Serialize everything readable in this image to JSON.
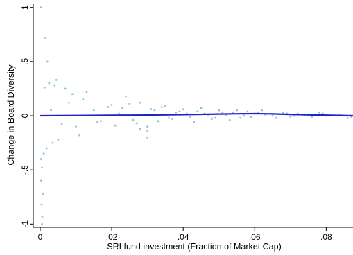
{
  "chart_data": {
    "type": "scatter",
    "title": "",
    "xlabel": "SRI fund investment (Fraction of Market Cap)",
    "ylabel": "Change in Board Diversity",
    "xlim": [
      0,
      0.0875
    ],
    "ylim": [
      -1.03,
      1.03
    ],
    "x_ticks": [
      0,
      0.02,
      0.04,
      0.06,
      0.08
    ],
    "x_tick_labels": [
      "0",
      ".02",
      ".04",
      ".06",
      ".08"
    ],
    "y_ticks": [
      -1,
      -0.5,
      0,
      0.5,
      1
    ],
    "y_tick_labels": [
      "-1",
      "-.5",
      "0",
      ".5",
      "1"
    ],
    "grid": false,
    "legend": "none",
    "colors": {
      "points": "#87c1e8",
      "fit_line": "#1f22c9"
    },
    "series": [
      {
        "kind": "scatter",
        "x": [
          0.0002,
          0.0015,
          0.002,
          0.0005,
          0.0006,
          0.0004,
          0.0008,
          0.0003,
          0.0005,
          0.0002,
          0.001,
          0.0045,
          0.003,
          0.006,
          0.008,
          0.01,
          0.012,
          0.015,
          0.017,
          0.02,
          0.022,
          0.024,
          0.026,
          0.028,
          0.03,
          0.032,
          0.034,
          0.036,
          0.038,
          0.04,
          0.042,
          0.044,
          0.046,
          0.048,
          0.05,
          0.052,
          0.054,
          0.056,
          0.058,
          0.06,
          0.062,
          0.065,
          0.068,
          0.07,
          0.072,
          0.075,
          0.078,
          0.08,
          0.082,
          0.085,
          0.087,
          0.028,
          0.03,
          0.03,
          0.009,
          0.007,
          0.011,
          0.013,
          0.004,
          0.005,
          0.0035,
          0.0025,
          0.0018,
          0.0012,
          0.016,
          0.019,
          0.021,
          0.023,
          0.025,
          0.027,
          0.031,
          0.033,
          0.035,
          0.037,
          0.039,
          0.041,
          0.043,
          0.045,
          0.047,
          0.049,
          0.051,
          0.053,
          0.055,
          0.057,
          0.059,
          0.061,
          0.063,
          0.066,
          0.069,
          0.071,
          0.074,
          0.076,
          0.079,
          0.081,
          0.084,
          0.086
        ],
        "y": [
          1.0,
          0.72,
          0.5,
          -1.0,
          -0.93,
          -0.82,
          -0.72,
          -0.6,
          -0.48,
          -0.4,
          -0.35,
          0.33,
          0.05,
          -0.08,
          0.12,
          -0.1,
          0.15,
          0.05,
          -0.05,
          0.1,
          0.02,
          0.18,
          -0.04,
          0.12,
          -0.1,
          0.05,
          0.08,
          -0.02,
          0.03,
          0.06,
          -0.01,
          0.04,
          0.02,
          -0.03,
          0.05,
          0.01,
          0.03,
          -0.02,
          0.04,
          0.02,
          0.05,
          0.0,
          0.03,
          -0.01,
          0.02,
          0.01,
          0.03,
          0.0,
          0.01,
          0.0,
          -0.01,
          -0.12,
          -0.14,
          -0.2,
          0.2,
          0.25,
          -0.18,
          0.22,
          0.28,
          -0.22,
          -0.25,
          0.3,
          -0.3,
          0.26,
          -0.06,
          0.08,
          -0.09,
          0.07,
          0.11,
          -0.07,
          0.06,
          -0.05,
          0.09,
          -0.03,
          0.04,
          0.02,
          -0.06,
          0.07,
          0.01,
          -0.02,
          0.03,
          -0.04,
          0.05,
          0.0,
          -0.01,
          0.03,
          0.01,
          -0.02,
          0.02,
          0.0,
          0.01,
          -0.01,
          0.02,
          0.0,
          0.01,
          -0.02
        ]
      },
      {
        "kind": "line",
        "x": [
          0,
          0.01,
          0.02,
          0.03,
          0.04,
          0.05,
          0.055,
          0.06,
          0.065,
          0.07,
          0.08,
          0.0875
        ],
        "y": [
          0.0,
          0.002,
          0.004,
          0.006,
          0.01,
          0.015,
          0.018,
          0.019,
          0.017,
          0.012,
          0.005,
          0.0
        ]
      }
    ]
  }
}
